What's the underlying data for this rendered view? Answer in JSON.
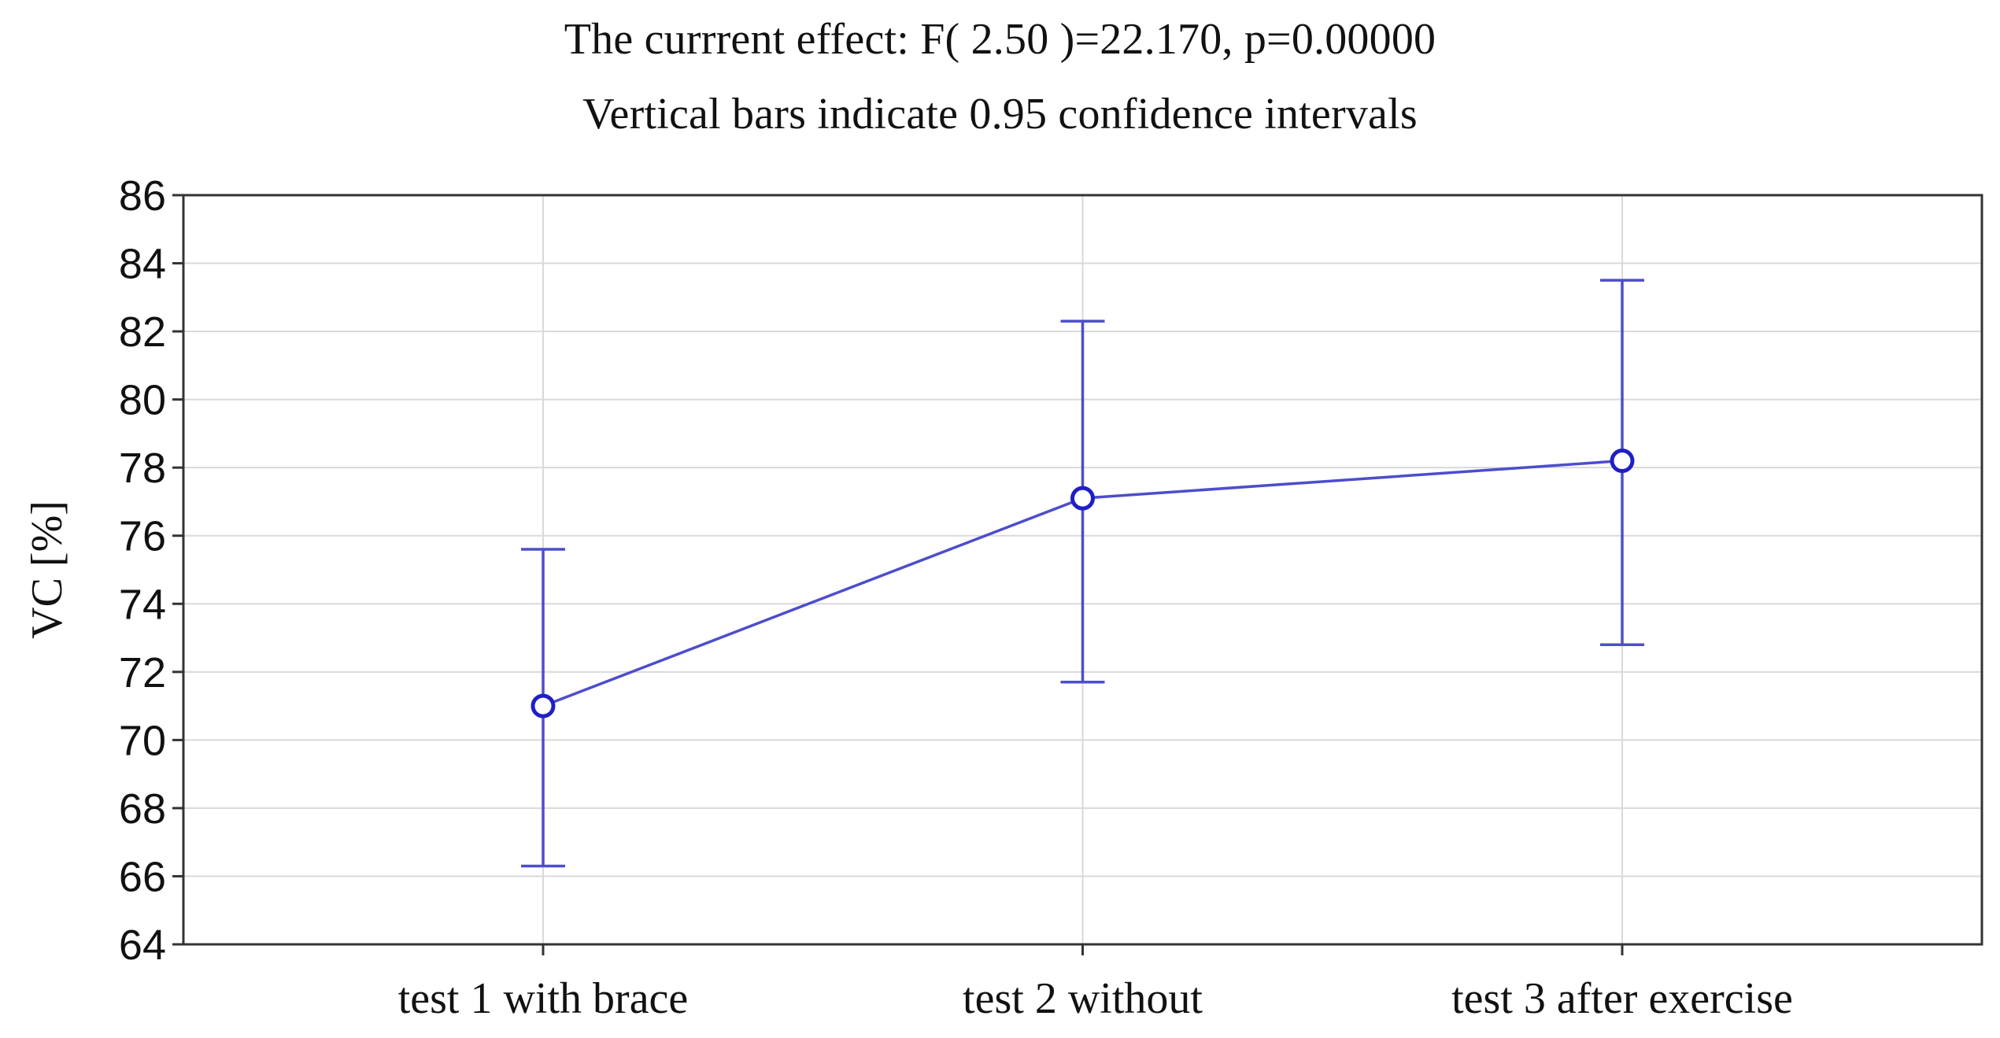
{
  "chart_data": {
    "type": "line",
    "title": "The currrent effect: F( 2.50 )=22.170, p=0.00000",
    "subtitle": "Vertical bars indicate 0.95 confidence intervals",
    "xlabel": "",
    "ylabel": "VC [%]",
    "categories": [
      "test 1 with brace",
      "test 2 without",
      "test 3 after exercise"
    ],
    "series": [
      {
        "values": [
          71.0,
          77.1,
          78.2
        ],
        "ci_lower": [
          66.3,
          71.7,
          72.8
        ],
        "ci_upper": [
          75.6,
          82.3,
          83.5
        ]
      }
    ],
    "ylim": [
      64,
      86
    ],
    "yticks": [
      64,
      66,
      68,
      70,
      72,
      74,
      76,
      78,
      80,
      82,
      84,
      86
    ],
    "grid": true,
    "legend": "none",
    "colors": {
      "series": "#4d4dcc",
      "marker": "#1f1fc4",
      "grid": "#d9d9d9",
      "axis": "#333333"
    }
  }
}
